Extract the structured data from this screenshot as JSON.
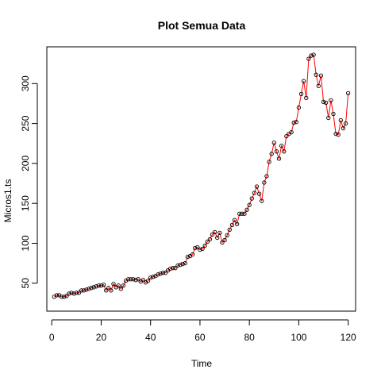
{
  "chart_data": {
    "type": "line",
    "title": "Plot Semua Data",
    "xlabel": "Time",
    "ylabel": "Micros1.ts",
    "xlim": [
      -2,
      123
    ],
    "ylim": [
      15,
      346
    ],
    "x_ticks": [
      0,
      20,
      40,
      60,
      80,
      100,
      120
    ],
    "y_ticks": [
      50,
      100,
      150,
      200,
      250,
      300
    ],
    "grid": false,
    "legend": "none",
    "line_color": "#ff0000",
    "marker_color": "#000000",
    "series": [
      {
        "x": [
          1,
          2,
          3,
          4,
          5,
          6,
          7,
          8,
          9,
          10,
          11,
          12,
          13,
          14,
          15,
          16,
          17,
          18,
          19,
          20,
          21,
          22,
          23,
          24,
          25,
          26,
          27,
          28,
          29,
          30,
          31,
          32,
          33,
          34,
          35,
          36,
          37,
          38,
          39,
          40,
          41,
          42,
          43,
          44,
          45,
          46,
          47,
          48,
          49,
          50,
          51,
          52,
          53,
          54,
          55,
          56,
          57,
          58,
          59,
          60,
          61,
          62,
          63,
          64,
          65,
          66,
          67,
          68,
          69,
          70,
          71,
          72,
          73,
          74,
          75,
          76,
          77,
          78,
          79,
          80,
          81,
          82,
          83,
          84,
          85,
          86,
          87,
          88,
          89,
          90,
          91,
          92,
          93,
          94,
          95,
          96,
          97,
          98,
          99,
          100,
          101,
          102,
          103,
          104,
          105,
          106,
          107,
          108,
          109,
          110,
          111,
          112,
          113,
          114,
          115,
          116,
          117,
          118,
          119,
          120
        ],
        "values": [
          33,
          35,
          35,
          33,
          33,
          34,
          37,
          38,
          37,
          38,
          38,
          41,
          41,
          42,
          43,
          44,
          45,
          46,
          47,
          47,
          48,
          41,
          44,
          41,
          49,
          45,
          47,
          43,
          47,
          53,
          55,
          55,
          55,
          54,
          55,
          52,
          54,
          51,
          53,
          57,
          58,
          59,
          61,
          62,
          63,
          63,
          66,
          68,
          69,
          69,
          72,
          73,
          74,
          75,
          83,
          84,
          86,
          94,
          95,
          92,
          93,
          97,
          102,
          105,
          111,
          114,
          107,
          113,
          101,
          104,
          110,
          117,
          123,
          129,
          124,
          137,
          137,
          137,
          142,
          148,
          156,
          163,
          171,
          162,
          153,
          176,
          184,
          202,
          212,
          226,
          215,
          206,
          222,
          215,
          234,
          237,
          239,
          251,
          252,
          270,
          287,
          303,
          282,
          331,
          335,
          336,
          311,
          297,
          310,
          277,
          276,
          257,
          279,
          262,
          237,
          236,
          254,
          244,
          250,
          288
        ]
      }
    ]
  }
}
